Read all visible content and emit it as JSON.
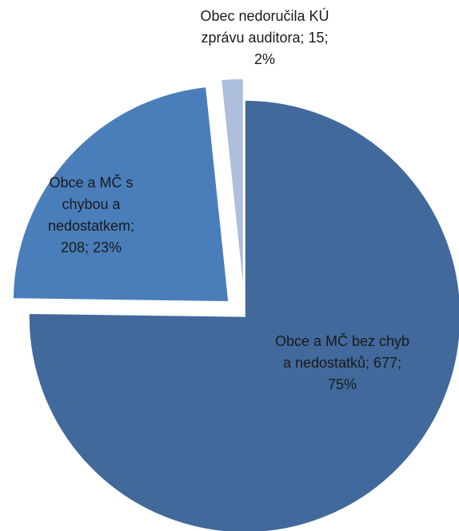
{
  "chart_data": {
    "type": "pie",
    "title": "",
    "exploded": true,
    "slices": [
      {
        "label": "Obce a MČ bez chyb a nedostatků",
        "value": 677,
        "percent": "75%",
        "color": "#41699B",
        "label_lines": [
          "Obce a MČ bez chyb",
          "a nedostatků; 677;",
          "75%"
        ]
      },
      {
        "label": "Obce a MČ s chybou a nedostatkem",
        "value": 208,
        "percent": "23%",
        "color": "#4A7EBB",
        "label_lines": [
          "Obce a MČ s",
          "chybou a",
          "nedostatkem;",
          "208; 23%"
        ]
      },
      {
        "label": "Obec nedoručila KÚ zprávu auditora",
        "value": 15,
        "percent": "2%",
        "color": "#AEBFDD",
        "label_lines": [
          "Obec nedoručila KÚ",
          "zprávu auditora; 15;",
          "2%"
        ]
      }
    ]
  }
}
